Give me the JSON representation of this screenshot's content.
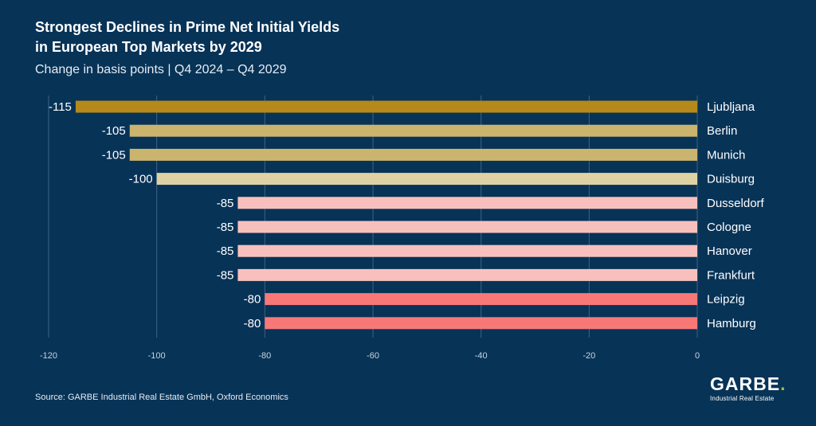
{
  "chart_data": {
    "type": "bar",
    "orientation": "horizontal",
    "title": "Strongest Declines in Prime Net Initial Yields\nin European Top Markets by 2029",
    "subtitle": "Change in basis points | Q4 2024 – Q4 2029",
    "categories": [
      "Ljubljana",
      "Berlin",
      "Munich",
      "Duisburg",
      "Dusseldorf",
      "Cologne",
      "Hanover",
      "Frankfurt",
      "Leipzig",
      "Hamburg"
    ],
    "values": [
      -115,
      -105,
      -105,
      -100,
      -85,
      -85,
      -85,
      -85,
      -80,
      -80
    ],
    "value_labels": [
      "-115",
      "-105",
      "-105",
      "-100",
      "-85",
      "-85",
      "-85",
      "-85",
      "-80",
      "-80"
    ],
    "colors": [
      "#b58a1b",
      "#cbb46e",
      "#cbb46e",
      "#ded2a4",
      "#f8c0bc",
      "#f8c0bc",
      "#f8c0bc",
      "#f8c0bc",
      "#f87878",
      "#f87878"
    ],
    "xlim": [
      -120,
      0
    ],
    "xticks": [
      -120,
      -100,
      -80,
      -60,
      -40,
      -20,
      0
    ],
    "xtick_labels": [
      "-120",
      "-100",
      "-80",
      "-60",
      "-40",
      "-20",
      "0"
    ],
    "grid": true
  },
  "footer": {
    "source": "Source: GARBE Industrial Real Estate GmbH, Oxford Economics"
  },
  "logo": {
    "name": "GARBE",
    "dot": ".",
    "tagline": "Industrial Real Estate",
    "dot_color": "#8cc63f"
  }
}
